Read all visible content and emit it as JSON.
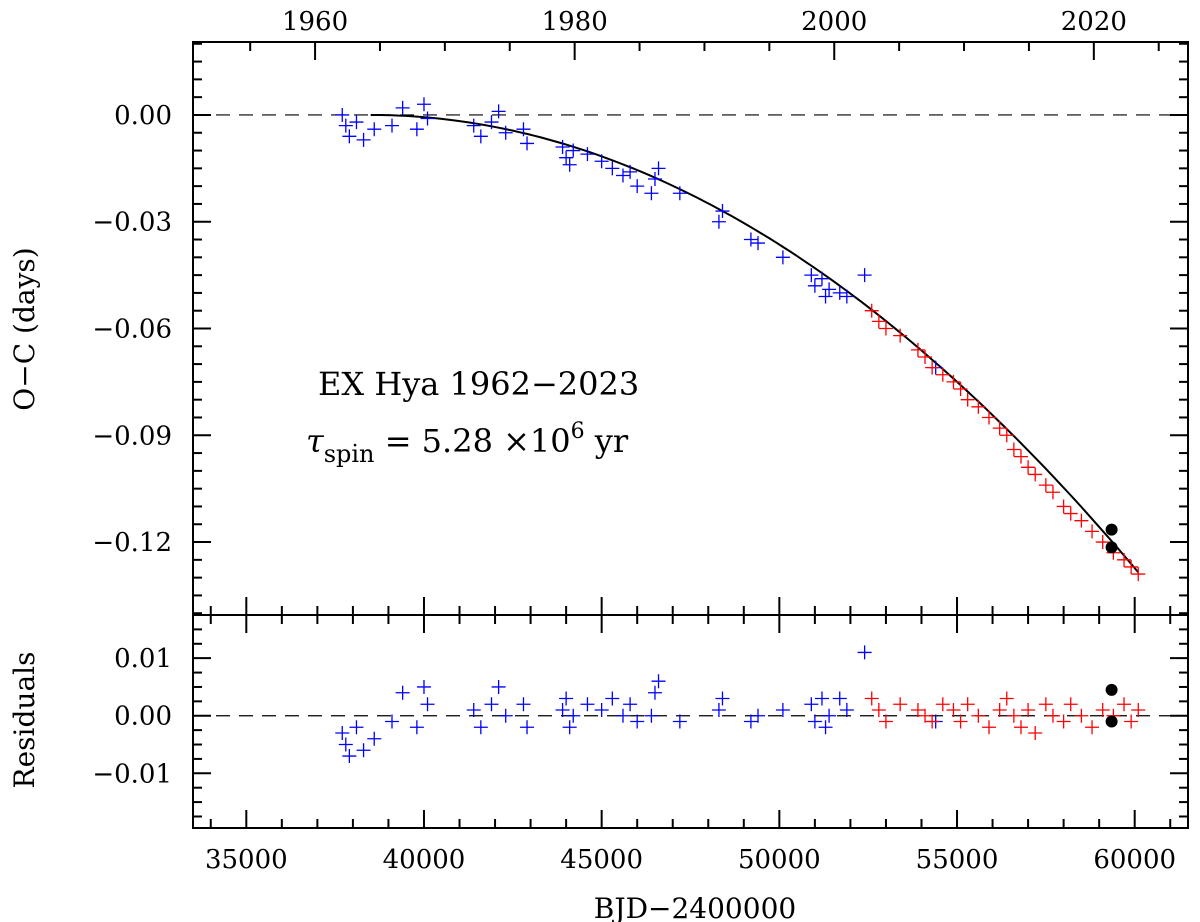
{
  "chart_data": {
    "type": "scatter",
    "title": "",
    "xlabel": "BJD−2400000",
    "top_axis": {
      "ticks": [
        1960,
        1980,
        2000,
        2020
      ],
      "tick_labels": [
        "1960",
        "1980",
        "2000",
        "2020"
      ]
    },
    "xlim": [
      33500,
      61500
    ],
    "xticks": [
      35000,
      40000,
      45000,
      50000,
      55000,
      60000
    ],
    "xtick_labels": [
      "35000",
      "40000",
      "45000",
      "50000",
      "55000",
      "60000"
    ],
    "annotation_line1": "EX Hya 1962−2023",
    "annotation_tau": "τ",
    "annotation_sub": "spin",
    "annotation_value": " = 5.28 ×10",
    "annotation_exp": "6",
    "annotation_unit": " yr",
    "colors": {
      "older_data": "#0000ff",
      "recent_data": "#ff0000",
      "new_points": "#000000",
      "fit": "#000000"
    },
    "panels": [
      {
        "ylabel": "O−C (days)",
        "ylim": [
          -0.1405,
          0.0205
        ],
        "yticks": [
          0.0,
          -0.03,
          -0.06,
          -0.09,
          -0.12
        ],
        "ytick_labels": [
          "0.00",
          "−0.03",
          "−0.06",
          "−0.09",
          "−0.12"
        ],
        "zero_line": "dashed",
        "fit_curve": {
          "type": "quadratic",
          "vertex_x": 38500,
          "vertex_y": 0.0,
          "x_range": [
            38500,
            60100
          ],
          "y_end": -0.1285
        },
        "series": [
          {
            "name": "",
            "color": "#0000ff",
            "marker": "plus",
            "points": [
              [
                37700,
                0.0
              ],
              [
                37800,
                -0.003
              ],
              [
                37900,
                -0.006
              ],
              [
                38100,
                -0.002
              ],
              [
                38300,
                -0.007
              ],
              [
                38600,
                -0.004
              ],
              [
                39100,
                -0.003
              ],
              [
                39400,
                0.002
              ],
              [
                39800,
                -0.004
              ],
              [
                40000,
                0.003
              ],
              [
                40100,
                -0.001
              ],
              [
                41400,
                -0.003
              ],
              [
                41600,
                -0.006
              ],
              [
                41900,
                -0.002
              ],
              [
                42100,
                0.001
              ],
              [
                42300,
                -0.005
              ],
              [
                42800,
                -0.004
              ],
              [
                42900,
                -0.008
              ],
              [
                43900,
                -0.009
              ],
              [
                44000,
                -0.012
              ],
              [
                44100,
                -0.014
              ],
              [
                44200,
                -0.01
              ],
              [
                44600,
                -0.011
              ],
              [
                45000,
                -0.013
              ],
              [
                45300,
                -0.015
              ],
              [
                45600,
                -0.017
              ],
              [
                45800,
                -0.016
              ],
              [
                46000,
                -0.02
              ],
              [
                46400,
                -0.022
              ],
              [
                46500,
                -0.018
              ],
              [
                46600,
                -0.015
              ],
              [
                47200,
                -0.022
              ],
              [
                48300,
                -0.03
              ],
              [
                48400,
                -0.027
              ],
              [
                49200,
                -0.035
              ],
              [
                49400,
                -0.036
              ],
              [
                50100,
                -0.04
              ],
              [
                50900,
                -0.045
              ],
              [
                51000,
                -0.048
              ],
              [
                51200,
                -0.046
              ],
              [
                51300,
                -0.051
              ],
              [
                51400,
                -0.049
              ],
              [
                51700,
                -0.05
              ],
              [
                51900,
                -0.051
              ],
              [
                52400,
                -0.045
              ],
              [
                54400,
                -0.071
              ]
            ]
          },
          {
            "name": "",
            "color": "#ff0000",
            "marker": "plus",
            "points": [
              [
                52600,
                -0.055
              ],
              [
                52800,
                -0.058
              ],
              [
                53000,
                -0.06
              ],
              [
                53400,
                -0.062
              ],
              [
                53900,
                -0.066
              ],
              [
                54100,
                -0.068
              ],
              [
                54300,
                -0.071
              ],
              [
                54600,
                -0.073
              ],
              [
                54900,
                -0.075
              ],
              [
                55100,
                -0.077
              ],
              [
                55300,
                -0.08
              ],
              [
                55600,
                -0.082
              ],
              [
                55900,
                -0.085
              ],
              [
                56200,
                -0.088
              ],
              [
                56400,
                -0.09
              ],
              [
                56600,
                -0.094
              ],
              [
                56800,
                -0.096
              ],
              [
                57000,
                -0.099
              ],
              [
                57200,
                -0.101
              ],
              [
                57500,
                -0.104
              ],
              [
                57700,
                -0.106
              ],
              [
                58000,
                -0.11
              ],
              [
                58200,
                -0.112
              ],
              [
                58500,
                -0.114
              ],
              [
                58800,
                -0.117
              ],
              [
                59100,
                -0.12
              ],
              [
                59400,
                -0.123
              ],
              [
                59700,
                -0.125
              ],
              [
                59900,
                -0.127
              ],
              [
                60100,
                -0.129
              ]
            ]
          },
          {
            "name": "",
            "color": "#000000",
            "marker": "filled-circle",
            "points": [
              [
                59350,
                -0.1165
              ],
              [
                59350,
                -0.1215
              ]
            ]
          }
        ]
      },
      {
        "ylabel": "Residuals",
        "ylim": [
          -0.0195,
          0.0175
        ],
        "yticks": [
          0.01,
          0.0,
          -0.01
        ],
        "ytick_labels": [
          "0.01",
          "0.00",
          "−0.01"
        ],
        "zero_line": "dashed",
        "series": [
          {
            "name": "",
            "color": "#0000ff",
            "marker": "plus",
            "points": [
              [
                37700,
                -0.003
              ],
              [
                37800,
                -0.005
              ],
              [
                37900,
                -0.007
              ],
              [
                38100,
                -0.002
              ],
              [
                38300,
                -0.006
              ],
              [
                38600,
                -0.004
              ],
              [
                39100,
                -0.001
              ],
              [
                39400,
                0.004
              ],
              [
                39800,
                -0.002
              ],
              [
                40000,
                0.005
              ],
              [
                40100,
                0.002
              ],
              [
                41400,
                0.001
              ],
              [
                41600,
                -0.002
              ],
              [
                41900,
                0.002
              ],
              [
                42100,
                0.005
              ],
              [
                42300,
                0.0
              ],
              [
                42800,
                0.002
              ],
              [
                42900,
                -0.002
              ],
              [
                43900,
                0.001
              ],
              [
                44000,
                0.003
              ],
              [
                44100,
                -0.002
              ],
              [
                44200,
                0.0
              ],
              [
                44600,
                0.002
              ],
              [
                45000,
                0.001
              ],
              [
                45300,
                0.003
              ],
              [
                45600,
                0.0
              ],
              [
                45800,
                0.002
              ],
              [
                46000,
                -0.001
              ],
              [
                46400,
                0.0
              ],
              [
                46500,
                0.004
              ],
              [
                46600,
                0.006
              ],
              [
                47200,
                -0.001
              ],
              [
                48300,
                0.001
              ],
              [
                48400,
                0.003
              ],
              [
                49200,
                -0.001
              ],
              [
                49400,
                0.0
              ],
              [
                50100,
                0.001
              ],
              [
                50900,
                0.002
              ],
              [
                51000,
                -0.001
              ],
              [
                51200,
                0.003
              ],
              [
                51300,
                -0.002
              ],
              [
                51400,
                0.0
              ],
              [
                51700,
                0.003
              ],
              [
                51900,
                0.001
              ],
              [
                52400,
                0.011
              ],
              [
                54400,
                -0.001
              ]
            ]
          },
          {
            "name": "",
            "color": "#ff0000",
            "marker": "plus",
            "points": [
              [
                52600,
                0.003
              ],
              [
                52800,
                0.001
              ],
              [
                53000,
                -0.001
              ],
              [
                53400,
                0.002
              ],
              [
                53900,
                0.001
              ],
              [
                54100,
                0.0
              ],
              [
                54300,
                -0.001
              ],
              [
                54600,
                0.002
              ],
              [
                54900,
                0.001
              ],
              [
                55100,
                -0.001
              ],
              [
                55300,
                0.002
              ],
              [
                55600,
                0.0
              ],
              [
                55900,
                -0.002
              ],
              [
                56200,
                0.001
              ],
              [
                56400,
                0.003
              ],
              [
                56600,
                0.0
              ],
              [
                56800,
                -0.002
              ],
              [
                57000,
                0.001
              ],
              [
                57200,
                -0.003
              ],
              [
                57500,
                0.002
              ],
              [
                57700,
                0.0
              ],
              [
                58000,
                -0.001
              ],
              [
                58200,
                0.002
              ],
              [
                58500,
                0.0
              ],
              [
                58800,
                -0.002
              ],
              [
                59100,
                0.001
              ],
              [
                59400,
                0.0
              ],
              [
                59700,
                0.002
              ],
              [
                59900,
                -0.001
              ],
              [
                60100,
                0.001
              ]
            ]
          },
          {
            "name": "",
            "color": "#000000",
            "marker": "filled-circle",
            "points": [
              [
                59350,
                0.0045
              ],
              [
                59350,
                -0.001
              ]
            ]
          }
        ]
      }
    ]
  }
}
